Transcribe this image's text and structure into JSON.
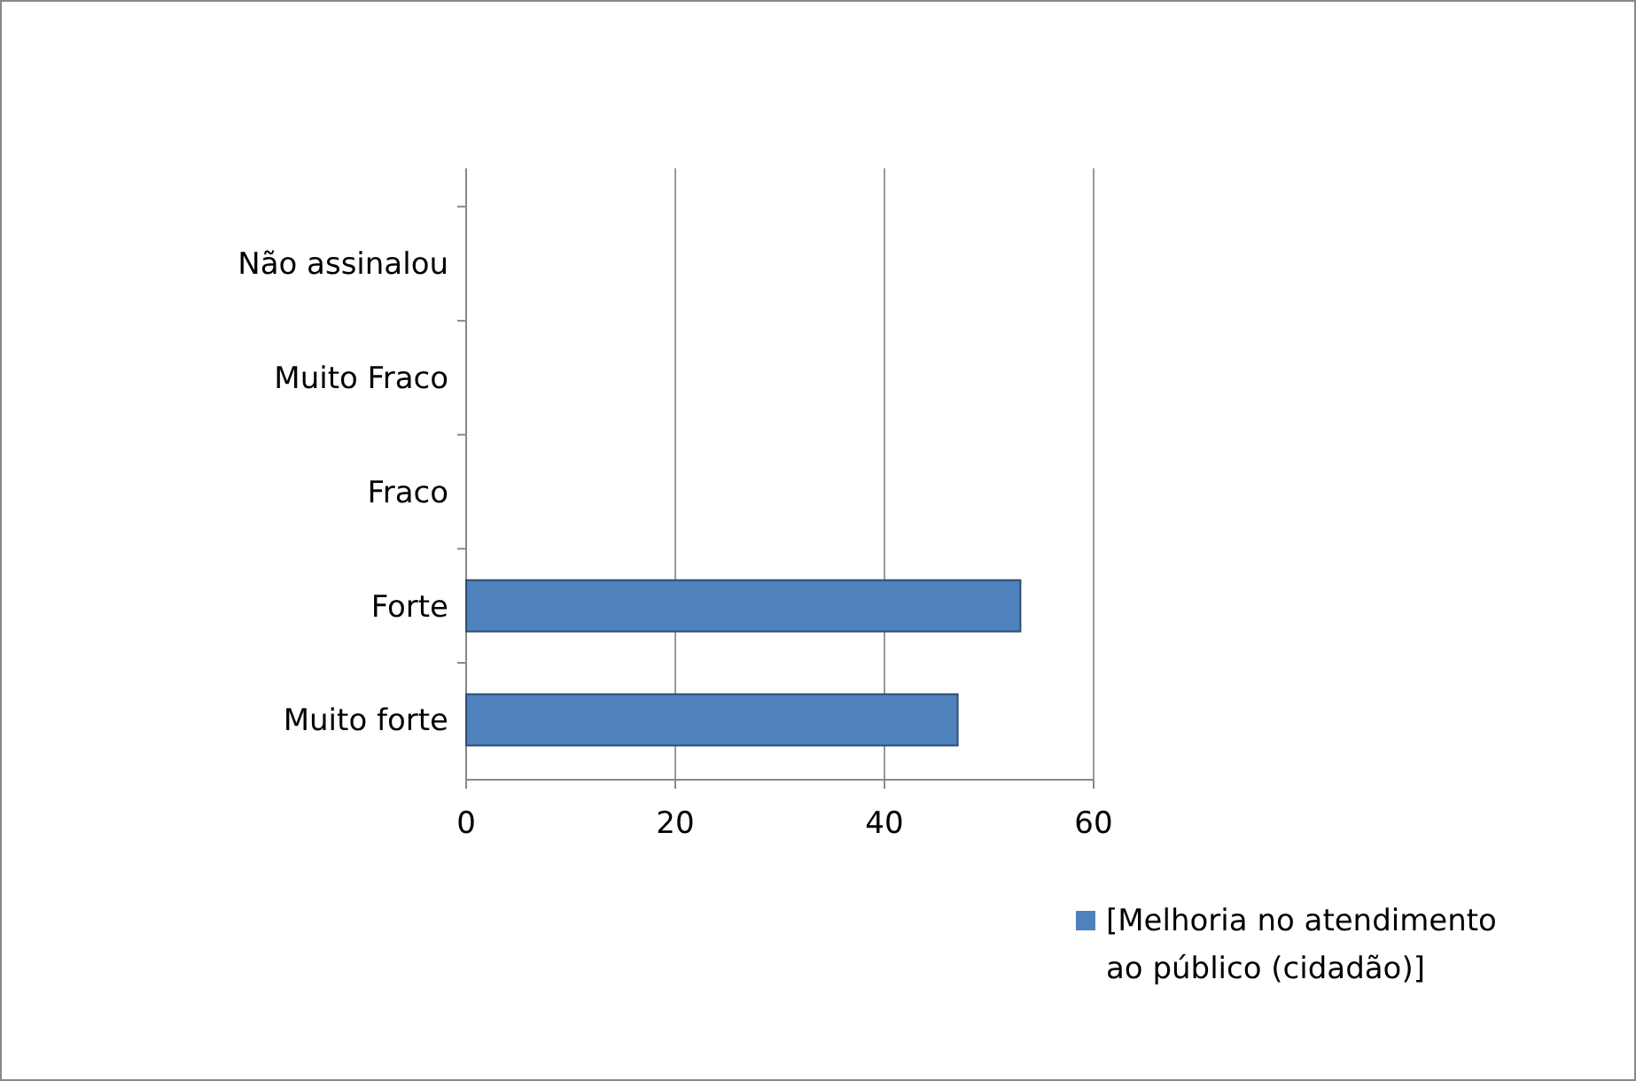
{
  "chart_data": {
    "type": "bar",
    "orientation": "horizontal",
    "categories": [
      "Não assinalou",
      "Muito Fraco",
      "Fraco",
      "Forte",
      "Muito forte"
    ],
    "series": [
      {
        "name": "[Melhoria no atendimento ao público (cidadão)]",
        "color": "#4f81bd",
        "values": [
          0,
          0,
          0,
          53,
          47
        ]
      }
    ],
    "xlim": [
      0,
      60
    ],
    "xticks": [
      0,
      20,
      40,
      60
    ],
    "grid": "x",
    "legend": "bottom right"
  }
}
